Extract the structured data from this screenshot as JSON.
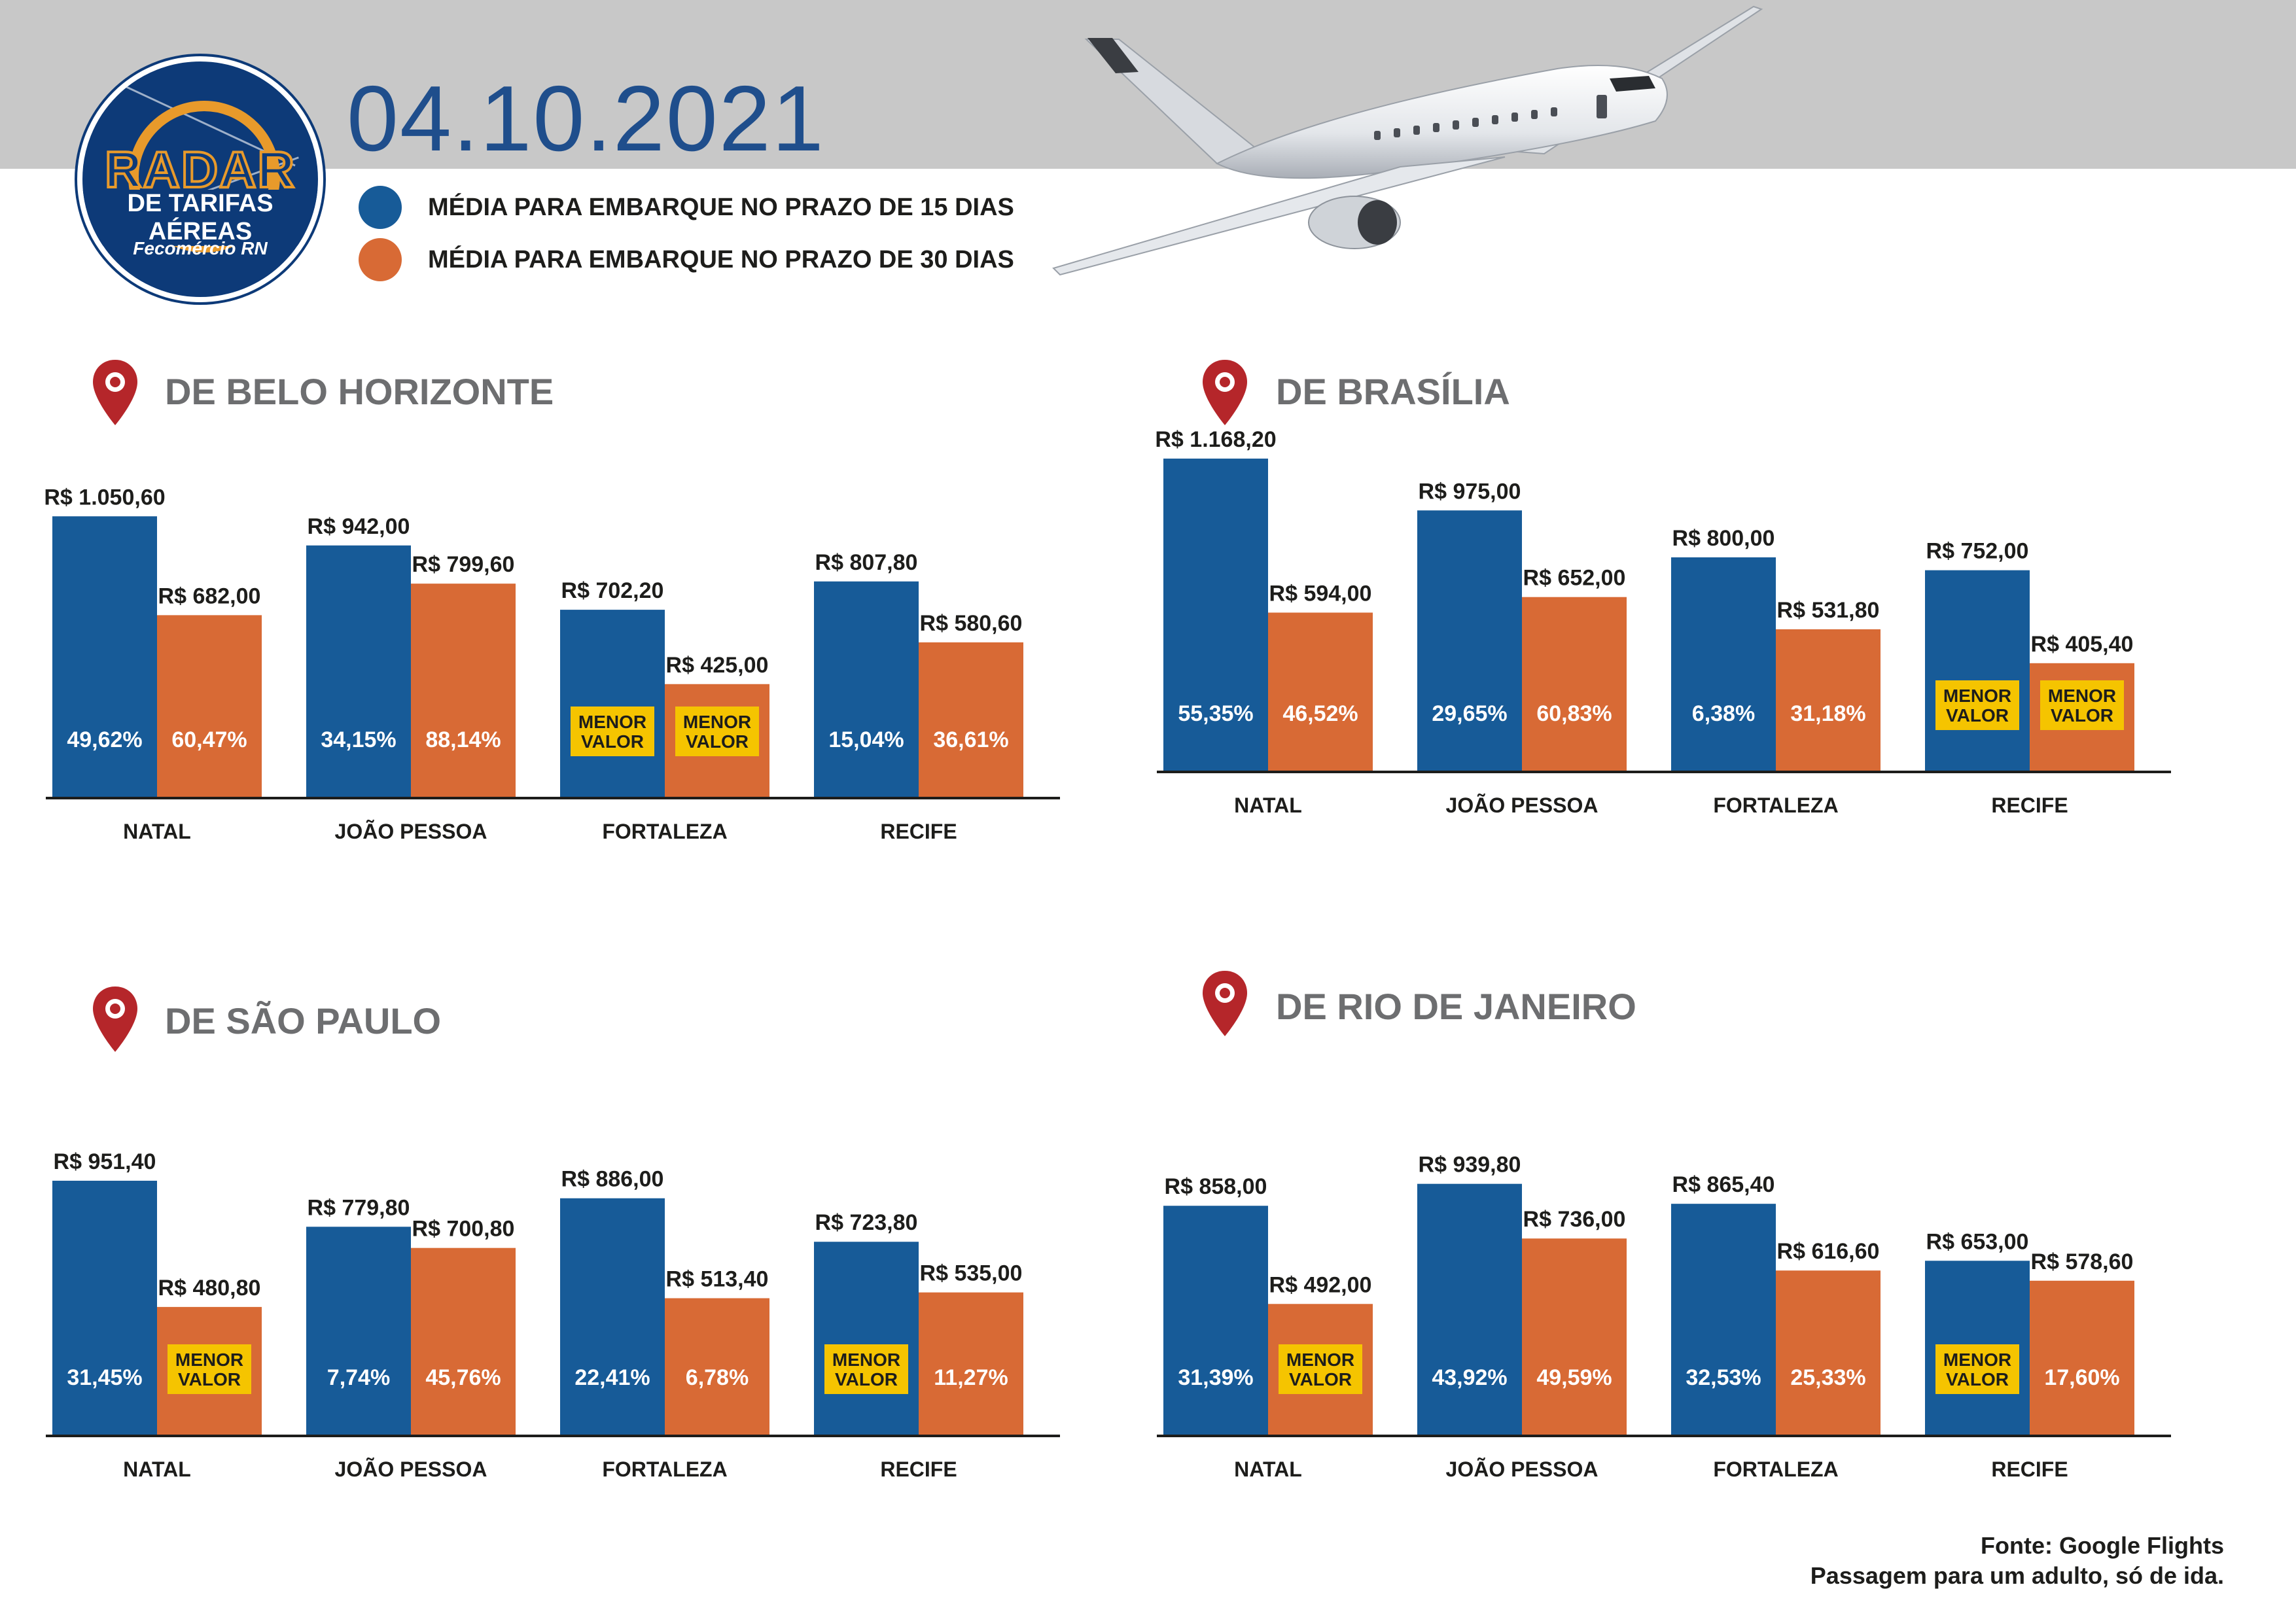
{
  "header": {
    "date": "04.10.2021",
    "legend": [
      {
        "label": "MÉDIA PARA EMBARQUE NO PRAZO DE 15 DIAS",
        "color": "#175b98"
      },
      {
        "label": "MÉDIA PARA EMBARQUE NO PRAZO DE 30 DIAS",
        "color": "#d86a35"
      }
    ],
    "logo": {
      "word1": "RADAR",
      "word2": "DE TARIFAS AÉREAS",
      "brand": "Fecomércio RN"
    }
  },
  "colors": {
    "blue": "#175b98",
    "orange": "#d86a35",
    "badge": "#f5c400",
    "axis": "#1d1d1b",
    "title": "#6d6e70",
    "pin": "#b5262a"
  },
  "chart_data": [
    {
      "type": "bar",
      "title": "DE BELO HORIZONTE",
      "categories": [
        "NATAL",
        "JOÃO PESSOA",
        "FORTALEZA",
        "RECIFE"
      ],
      "series": [
        {
          "name": "MÉDIA PARA EMBARQUE NO PRAZO DE 15 DIAS",
          "values": [
            1050.6,
            942.0,
            702.2,
            807.8
          ],
          "labels": [
            "R$ 1.050,60",
            "R$ 942,00",
            "R$ 702,20",
            "R$ 807,80"
          ],
          "inner": [
            "49,62%",
            "34,15%",
            "MENOR VALOR",
            "15,04%"
          ]
        },
        {
          "name": "MÉDIA PARA EMBARQUE NO PRAZO DE 30 DIAS",
          "values": [
            682.0,
            799.6,
            425.0,
            580.6
          ],
          "labels": [
            "R$ 682,00",
            "R$ 799,60",
            "R$ 425,00",
            "R$ 580,60"
          ],
          "inner": [
            "60,47%",
            "88,14%",
            "MENOR VALOR",
            "36,61%"
          ]
        }
      ]
    },
    {
      "type": "bar",
      "title": "DE BRASÍLIA",
      "categories": [
        "NATAL",
        "JOÃO PESSOA",
        "FORTALEZA",
        "RECIFE"
      ],
      "series": [
        {
          "name": "MÉDIA PARA EMBARQUE NO PRAZO DE 15 DIAS",
          "values": [
            1168.2,
            975.0,
            800.0,
            752.0
          ],
          "labels": [
            "R$ 1.168,20",
            "R$ 975,00",
            "R$ 800,00",
            "R$ 752,00"
          ],
          "inner": [
            "55,35%",
            "29,65%",
            "6,38%",
            "MENOR VALOR"
          ]
        },
        {
          "name": "MÉDIA PARA EMBARQUE NO PRAZO DE 30 DIAS",
          "values": [
            594.0,
            652.0,
            531.8,
            405.4
          ],
          "labels": [
            "R$ 594,00",
            "R$ 652,00",
            "R$ 531,80",
            "R$ 405,40"
          ],
          "inner": [
            "46,52%",
            "60,83%",
            "31,18%",
            "MENOR VALOR"
          ]
        }
      ]
    },
    {
      "type": "bar",
      "title": "DE SÃO PAULO",
      "categories": [
        "NATAL",
        "JOÃO PESSOA",
        "FORTALEZA",
        "RECIFE"
      ],
      "series": [
        {
          "name": "MÉDIA PARA EMBARQUE NO PRAZO DE 15 DIAS",
          "values": [
            951.4,
            779.8,
            886.0,
            723.8
          ],
          "labels": [
            "R$ 951,40",
            "R$ 779,80",
            "R$ 886,00",
            "R$ 723,80"
          ],
          "inner": [
            "31,45%",
            "7,74%",
            "22,41%",
            "MENOR VALOR"
          ]
        },
        {
          "name": "MÉDIA PARA EMBARQUE NO PRAZO DE 30 DIAS",
          "values": [
            480.8,
            700.8,
            513.4,
            535.0
          ],
          "labels": [
            "R$ 480,80",
            "R$ 700,80",
            "R$ 513,40",
            "R$ 535,00"
          ],
          "inner": [
            "MENOR VALOR",
            "45,76%",
            "6,78%",
            "11,27%"
          ]
        }
      ]
    },
    {
      "type": "bar",
      "title": "DE RIO DE JANEIRO",
      "categories": [
        "NATAL",
        "JOÃO PESSOA",
        "FORTALEZA",
        "RECIFE"
      ],
      "series": [
        {
          "name": "MÉDIA PARA EMBARQUE NO PRAZO DE 15 DIAS",
          "values": [
            858.0,
            939.8,
            865.4,
            653.0
          ],
          "labels": [
            "R$ 858,00",
            "R$ 939,80",
            "R$ 865,40",
            "R$ 653,00"
          ],
          "inner": [
            "31,39%",
            "43,92%",
            "32,53%",
            "MENOR VALOR"
          ]
        },
        {
          "name": "MÉDIA PARA EMBARQUE NO PRAZO DE 30 DIAS",
          "values": [
            492.0,
            736.0,
            616.6,
            578.6
          ],
          "labels": [
            "R$ 492,00",
            "R$ 736,00",
            "R$ 616,60",
            "R$ 578,60"
          ],
          "inner": [
            "MENOR VALOR",
            "49,59%",
            "25,33%",
            "17,60%"
          ]
        }
      ]
    }
  ],
  "footer": {
    "source": "Fonte: Google Flights",
    "note": "Passagem para um adulto, só de ida."
  }
}
